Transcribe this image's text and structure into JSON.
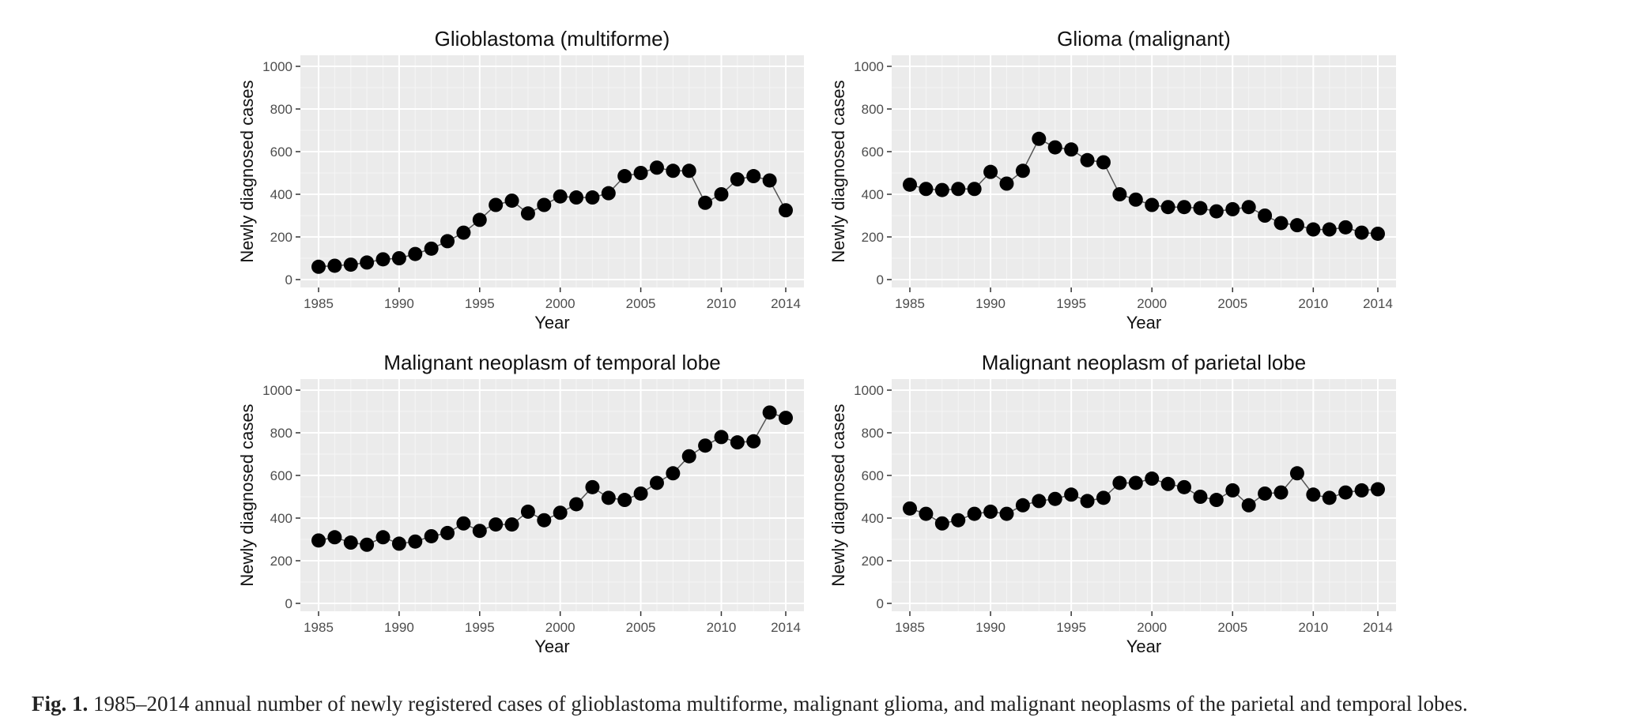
{
  "caption": {
    "label": "Fig. 1.",
    "text": "1985–2014 annual number of newly registered cases of glioblastoma multiforme, malignant glioma, and malignant neoplasms of the parietal and temporal lobes."
  },
  "chart_data": [
    {
      "type": "line",
      "title": "Glioblastoma (multiforme)",
      "xlabel": "Year",
      "ylabel": "Newly diagnosed cases",
      "xlim": [
        1985,
        2014
      ],
      "ylim": [
        0,
        1000
      ],
      "xticks": [
        1985,
        1990,
        1995,
        2000,
        2005,
        2010,
        2014
      ],
      "yticks": [
        0,
        200,
        400,
        600,
        800,
        1000
      ],
      "grid": true,
      "x": [
        1985,
        1986,
        1987,
        1988,
        1989,
        1990,
        1991,
        1992,
        1993,
        1994,
        1995,
        1996,
        1997,
        1998,
        1999,
        2000,
        2001,
        2002,
        2003,
        2004,
        2005,
        2006,
        2007,
        2008,
        2009,
        2010,
        2011,
        2012,
        2013,
        2014
      ],
      "values": [
        60,
        65,
        70,
        80,
        95,
        100,
        120,
        145,
        180,
        220,
        280,
        350,
        370,
        310,
        350,
        390,
        385,
        385,
        405,
        485,
        500,
        525,
        510,
        510,
        360,
        400,
        470,
        485,
        465,
        325
      ]
    },
    {
      "type": "line",
      "title": "Glioma (malignant)",
      "xlabel": "Year",
      "ylabel": "Newly diagnosed cases",
      "xlim": [
        1985,
        2014
      ],
      "ylim": [
        0,
        1000
      ],
      "xticks": [
        1985,
        1990,
        1995,
        2000,
        2005,
        2010,
        2014
      ],
      "yticks": [
        0,
        200,
        400,
        600,
        800,
        1000
      ],
      "grid": true,
      "x": [
        1985,
        1986,
        1987,
        1988,
        1989,
        1990,
        1991,
        1992,
        1993,
        1994,
        1995,
        1996,
        1997,
        1998,
        1999,
        2000,
        2001,
        2002,
        2003,
        2004,
        2005,
        2006,
        2007,
        2008,
        2009,
        2010,
        2011,
        2012,
        2013,
        2014
      ],
      "values": [
        445,
        425,
        420,
        425,
        425,
        505,
        450,
        510,
        660,
        620,
        610,
        560,
        550,
        400,
        375,
        350,
        340,
        340,
        335,
        320,
        330,
        340,
        300,
        265,
        255,
        235,
        235,
        245,
        220,
        215
      ]
    },
    {
      "type": "line",
      "title": "Malignant neoplasm of temporal lobe",
      "xlabel": "Year",
      "ylabel": "Newly diagnosed cases",
      "xlim": [
        1985,
        2014
      ],
      "ylim": [
        0,
        1000
      ],
      "xticks": [
        1985,
        1990,
        1995,
        2000,
        2005,
        2010,
        2014
      ],
      "yticks": [
        0,
        200,
        400,
        600,
        800,
        1000
      ],
      "grid": true,
      "x": [
        1985,
        1986,
        1987,
        1988,
        1989,
        1990,
        1991,
        1992,
        1993,
        1994,
        1995,
        1996,
        1997,
        1998,
        1999,
        2000,
        2001,
        2002,
        2003,
        2004,
        2005,
        2006,
        2007,
        2008,
        2009,
        2010,
        2011,
        2012,
        2013,
        2014
      ],
      "values": [
        295,
        310,
        285,
        275,
        310,
        280,
        290,
        315,
        330,
        375,
        340,
        370,
        370,
        430,
        390,
        425,
        465,
        545,
        495,
        485,
        515,
        565,
        610,
        690,
        740,
        780,
        755,
        760,
        895,
        870
      ]
    },
    {
      "type": "line",
      "title": "Malignant neoplasm of parietal lobe",
      "xlabel": "Year",
      "ylabel": "Newly diagnosed cases",
      "xlim": [
        1985,
        2014
      ],
      "ylim": [
        0,
        1000
      ],
      "xticks": [
        1985,
        1990,
        1995,
        2000,
        2005,
        2010,
        2014
      ],
      "yticks": [
        0,
        200,
        400,
        600,
        800,
        1000
      ],
      "grid": true,
      "x": [
        1985,
        1986,
        1987,
        1988,
        1989,
        1990,
        1991,
        1992,
        1993,
        1994,
        1995,
        1996,
        1997,
        1998,
        1999,
        2000,
        2001,
        2002,
        2003,
        2004,
        2005,
        2006,
        2007,
        2008,
        2009,
        2010,
        2011,
        2012,
        2013,
        2014
      ],
      "values": [
        445,
        420,
        375,
        390,
        420,
        430,
        420,
        460,
        480,
        490,
        510,
        480,
        495,
        565,
        565,
        585,
        560,
        545,
        500,
        485,
        530,
        460,
        515,
        520,
        610,
        510,
        495,
        520,
        530,
        535
      ]
    }
  ]
}
